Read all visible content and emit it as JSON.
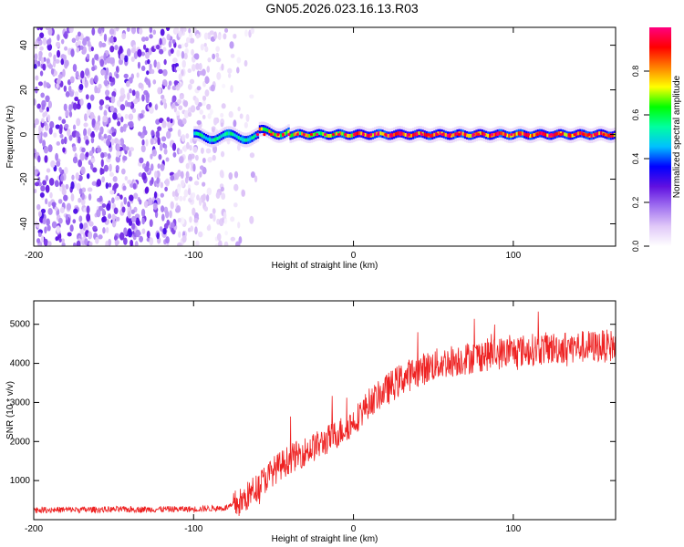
{
  "title": "GN05.2026.023.16.13.R03",
  "chart_data": [
    {
      "type": "heatmap",
      "xlabel": "Height of straight line (km)",
      "ylabel": "Frequency (Hz)",
      "xlim": [
        -200,
        164
      ],
      "ylim": [
        -50,
        48
      ],
      "xticks": [
        -200,
        -100,
        0,
        100
      ],
      "yticks": [
        -40,
        -20,
        0,
        20,
        40
      ],
      "colorbar": {
        "label": "Normalized spectral amplitude",
        "range": [
          0,
          1
        ],
        "ticks": [
          "0.0",
          "0.2",
          "0.4",
          "0.6",
          "0.8"
        ],
        "tick_values": [
          0.0,
          0.2,
          0.4,
          0.6,
          0.8
        ],
        "stops": [
          "#ffffff",
          "#e0c8f8",
          "#a070f0",
          "#6010e0",
          "#0000ff",
          "#00c0ff",
          "#00ffa0",
          "#00ff00",
          "#ffff00",
          "#ff8000",
          "#ff0000",
          "#ff0080"
        ]
      },
      "noise_region_x": [
        -200,
        -70
      ],
      "carrier_start_x": -100,
      "carrier_frequency_hz": 0
    },
    {
      "type": "line",
      "xlabel": "Height of straight line (km)",
      "ylabel": "SNR (10 * v/v)",
      "xlim": [
        -200,
        164
      ],
      "ylim": [
        0,
        5600
      ],
      "xticks": [
        -200,
        -100,
        0,
        100
      ],
      "yticks": [
        1000,
        2000,
        3000,
        4000,
        5000
      ],
      "color": "#ee2222",
      "trend": {
        "x": [
          -200,
          -150,
          -100,
          -80,
          -70,
          -60,
          -50,
          -40,
          -30,
          -20,
          -10,
          0,
          10,
          20,
          30,
          40,
          50,
          60,
          80,
          100,
          120,
          140,
          164
        ],
        "y": [
          250,
          260,
          270,
          300,
          450,
          850,
          1250,
          1550,
          1750,
          1950,
          2200,
          2500,
          3000,
          3300,
          3600,
          3800,
          3950,
          4050,
          4200,
          4300,
          4380,
          4420,
          4450
        ]
      }
    }
  ]
}
